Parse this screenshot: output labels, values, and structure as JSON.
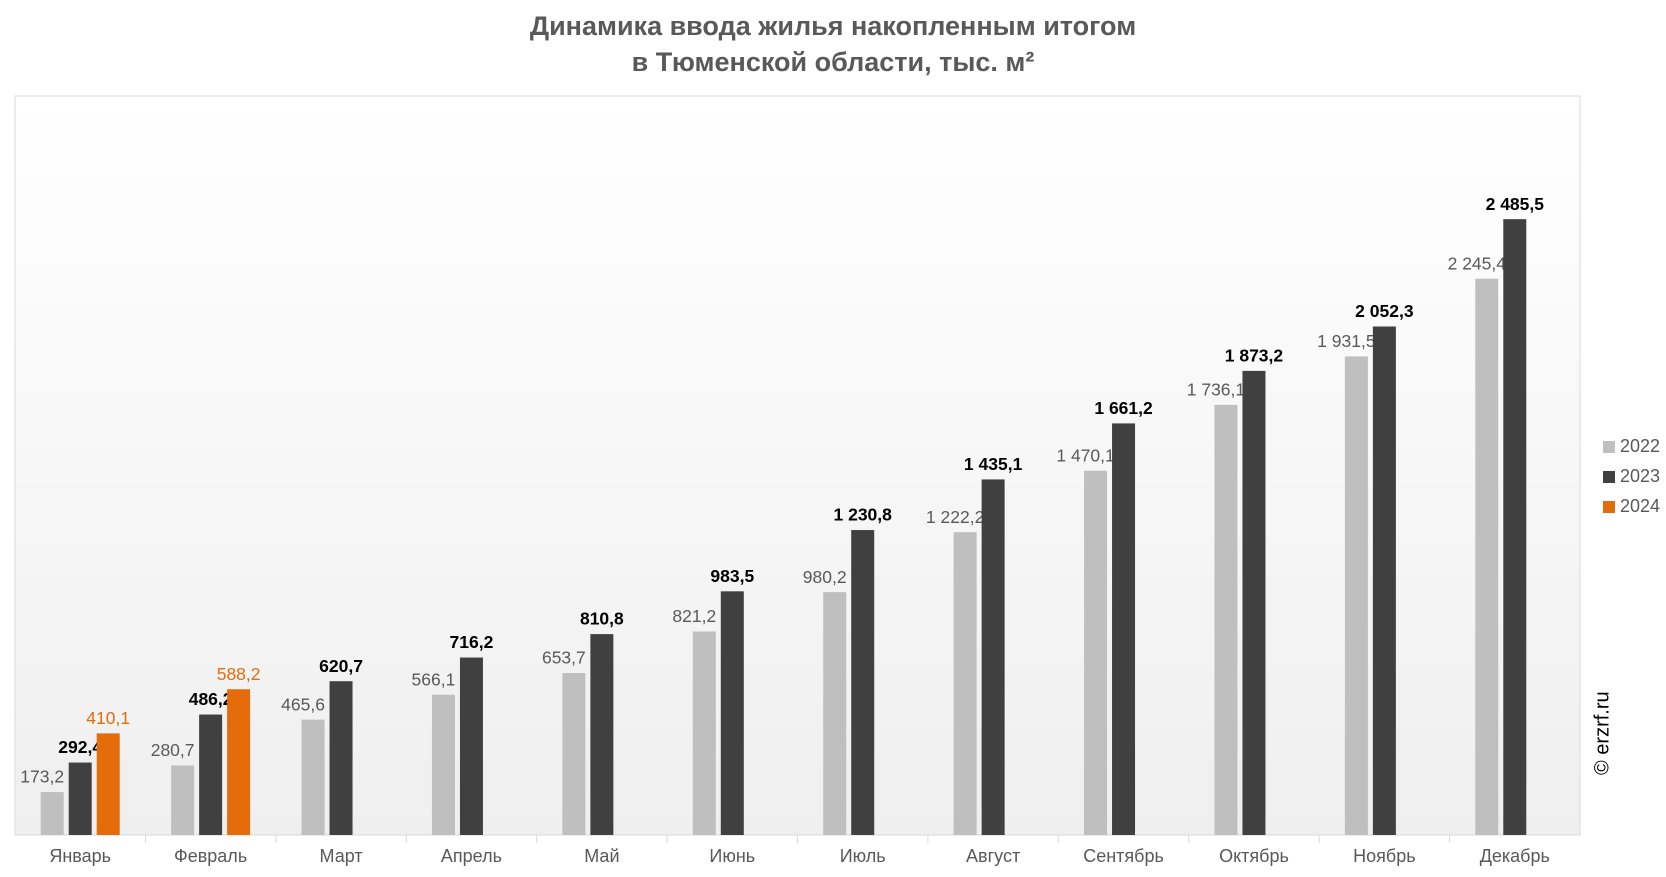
{
  "chart_data": {
    "type": "bar",
    "title": [
      "Динамика ввода жилья накопленным итогом",
      "в Тюменской области, тыс. м²"
    ],
    "categories": [
      "Январь",
      "Февраль",
      "Март",
      "Апрель",
      "Май",
      "Июнь",
      "Июль",
      "Август",
      "Сентябрь",
      "Октябрь",
      "Ноябрь",
      "Декабрь"
    ],
    "series": [
      {
        "name": "2022",
        "color": "#bfbfbf",
        "label_color": "#595959",
        "values": [
          173.2,
          280.7,
          465.6,
          566.1,
          653.7,
          821.2,
          980.2,
          1222.2,
          1470.1,
          1736.1,
          1931.5,
          2245.4
        ],
        "value_labels": [
          "173,2",
          "280,7",
          "465,6",
          "566,1",
          "653,7",
          "821,2",
          "980,2",
          "1 222,2",
          "1 470,1",
          "1 736,1",
          "1 931,5",
          "2 245,4"
        ]
      },
      {
        "name": "2023",
        "color": "#404040",
        "label_color": "#000000",
        "values": [
          292.4,
          486.2,
          620.7,
          716.2,
          810.8,
          983.5,
          1230.8,
          1435.1,
          1661.2,
          1873.2,
          2052.3,
          2485.5
        ],
        "value_labels": [
          "292,4",
          "486,2",
          "620,7",
          "716,2",
          "810,8",
          "983,5",
          "1 230,8",
          "1 435,1",
          "1 661,2",
          "1 873,2",
          "2 052,3",
          "2 485,5"
        ]
      },
      {
        "name": "2024",
        "color": "#e46c0a",
        "label_color": "#e46c0a",
        "values": [
          410.1,
          588.2,
          null,
          null,
          null,
          null,
          null,
          null,
          null,
          null,
          null,
          null
        ],
        "value_labels": [
          "410,1",
          "588,2",
          null,
          null,
          null,
          null,
          null,
          null,
          null,
          null,
          null,
          null
        ]
      }
    ],
    "legend": "right",
    "source": "© erzrf.ru"
  }
}
